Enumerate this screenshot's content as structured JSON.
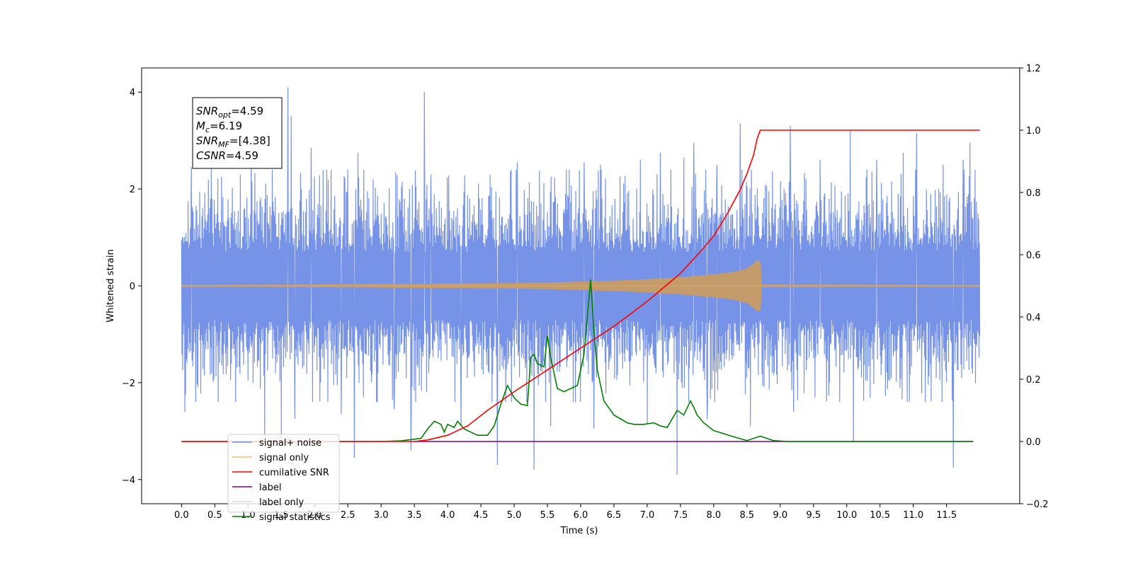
{
  "chart_data": {
    "type": "line",
    "xlabel": "Time (s)",
    "ylabel_left": "Whitened strain",
    "ylabel_right": "",
    "xlim": [
      -0.6,
      12.6
    ],
    "ylim_left": [
      -4.5,
      4.5
    ],
    "ylim_right": [
      -0.2,
      1.2
    ],
    "x_ticks": [
      0.0,
      0.5,
      1.0,
      1.5,
      2.0,
      2.5,
      3.0,
      3.5,
      4.0,
      4.5,
      5.0,
      5.5,
      6.0,
      6.5,
      7.0,
      7.5,
      8.0,
      8.5,
      9.0,
      9.5,
      10.0,
      10.5,
      11.0,
      11.5
    ],
    "x_tick_labels": [
      "0.0",
      "0.5",
      "1.0",
      "1.5",
      "2.0",
      "2.5",
      "3.0",
      "3.5",
      "4.0",
      "4.5",
      "5.0",
      "5.5",
      "6.0",
      "6.5",
      "7.0",
      "7.5",
      "8.0",
      "8.5",
      "9.0",
      "9.5",
      "10.0",
      "10.5",
      "11.0",
      "11.5"
    ],
    "y_left_ticks": [
      -4,
      -2,
      0,
      2,
      4
    ],
    "y_left_tick_labels": [
      "−4",
      "−2",
      "0",
      "2",
      "4"
    ],
    "y_right_ticks": [
      -0.2,
      0.0,
      0.2,
      0.4,
      0.6,
      0.8,
      1.0,
      1.2
    ],
    "y_right_tick_labels": [
      "−0.2",
      "0.0",
      "0.2",
      "0.4",
      "0.6",
      "0.8",
      "1.0",
      "1.2"
    ],
    "grid": false,
    "legend_position": "lower-left",
    "annotation": {
      "lines": [
        {
          "symbol": "SNR",
          "sub": "opt",
          "value": "=4.59"
        },
        {
          "symbol": "M",
          "sub": "c",
          "value": "=6.19"
        },
        {
          "symbol": "SNR",
          "sub": "MF",
          "value": "=[4.38]"
        },
        {
          "symbol": "CSNR",
          "sub": "",
          "value": "=4.59"
        }
      ]
    },
    "series": [
      {
        "name": "signal+ noise",
        "color": "#7793e8",
        "axis": "left",
        "x_range": [
          0.0,
          12.0
        ],
        "typical_amplitude": 1.9,
        "spikes": [
          [
            0.05,
            -2.6
          ],
          [
            0.15,
            2.45
          ],
          [
            0.45,
            2.65
          ],
          [
            0.55,
            -2.4
          ],
          [
            1.05,
            2.9
          ],
          [
            1.25,
            -3.1
          ],
          [
            1.5,
            -3.15
          ],
          [
            1.6,
            4.1
          ],
          [
            1.65,
            3.5
          ],
          [
            1.7,
            -2.75
          ],
          [
            1.95,
            2.85
          ],
          [
            2.4,
            -2.65
          ],
          [
            2.6,
            -3.55
          ],
          [
            2.65,
            2.75
          ],
          [
            3.2,
            -2.55
          ],
          [
            3.45,
            -3.4
          ],
          [
            3.65,
            4.0
          ],
          [
            3.75,
            2.3
          ],
          [
            4.2,
            -2.9
          ],
          [
            4.75,
            -3.7
          ],
          [
            5.05,
            2.55
          ],
          [
            5.3,
            -3.8
          ],
          [
            5.55,
            -2.9
          ],
          [
            6.05,
            2.55
          ],
          [
            6.2,
            -2.95
          ],
          [
            6.3,
            2.5
          ],
          [
            6.9,
            2.6
          ],
          [
            7.0,
            -2.85
          ],
          [
            7.2,
            2.75
          ],
          [
            7.45,
            -3.9
          ],
          [
            7.55,
            2.65
          ],
          [
            7.7,
            2.95
          ],
          [
            7.9,
            -2.75
          ],
          [
            8.05,
            2.5
          ],
          [
            8.4,
            3.35
          ],
          [
            8.55,
            -2.9
          ],
          [
            9.15,
            3.3
          ],
          [
            9.2,
            -2.6
          ],
          [
            9.6,
            2.6
          ],
          [
            10.05,
            3.2
          ],
          [
            10.1,
            -3.2
          ],
          [
            10.45,
            2.6
          ],
          [
            10.85,
            2.75
          ],
          [
            11.05,
            3.15
          ],
          [
            11.45,
            2.5
          ],
          [
            11.6,
            -3.75
          ],
          [
            11.75,
            2.6
          ],
          [
            11.85,
            2.95
          ]
        ]
      },
      {
        "name": "signal only",
        "color": "#f5c26b",
        "axis": "left",
        "envelope": [
          [
            0.0,
            0.01
          ],
          [
            1.0,
            0.015
          ],
          [
            2.0,
            0.02
          ],
          [
            3.0,
            0.03
          ],
          [
            4.0,
            0.04
          ],
          [
            5.0,
            0.05
          ],
          [
            5.5,
            0.06
          ],
          [
            6.0,
            0.08
          ],
          [
            6.5,
            0.1
          ],
          [
            7.0,
            0.13
          ],
          [
            7.5,
            0.17
          ],
          [
            8.0,
            0.23
          ],
          [
            8.3,
            0.28
          ],
          [
            8.5,
            0.35
          ],
          [
            8.6,
            0.45
          ],
          [
            8.65,
            0.52
          ],
          [
            8.7,
            0.5
          ],
          [
            8.72,
            0.02
          ],
          [
            12.0,
            0.01
          ]
        ]
      },
      {
        "name": "cumilative SNR",
        "color": "#ff0000",
        "axis": "right",
        "x": [
          0.0,
          3.5,
          3.7,
          4.0,
          4.3,
          4.6,
          5.0,
          5.5,
          6.0,
          6.5,
          7.0,
          7.5,
          7.8,
          8.0,
          8.2,
          8.4,
          8.5,
          8.6,
          8.65,
          8.7,
          8.75,
          12.0
        ],
        "values": [
          0.0,
          0.0,
          0.005,
          0.02,
          0.05,
          0.1,
          0.16,
          0.23,
          0.3,
          0.37,
          0.45,
          0.54,
          0.61,
          0.66,
          0.73,
          0.81,
          0.86,
          0.92,
          0.97,
          1.0,
          1.0,
          1.0
        ]
      },
      {
        "name": "label",
        "color": "#800080",
        "axis": "right",
        "x": [
          3.5,
          11.9
        ],
        "values": [
          0.0,
          0.0
        ]
      },
      {
        "name": "label only",
        "color": "#d8d8d8",
        "axis": "right",
        "hidden_in_plot": true
      },
      {
        "name": "signal statistics",
        "color": "#008000",
        "axis": "right",
        "x": [
          0.0,
          2.0,
          3.0,
          3.3,
          3.6,
          3.7,
          3.8,
          3.9,
          3.95,
          4.0,
          4.1,
          4.15,
          4.25,
          4.35,
          4.45,
          4.6,
          4.7,
          4.8,
          4.9,
          5.0,
          5.1,
          5.2,
          5.25,
          5.3,
          5.35,
          5.45,
          5.5,
          5.55,
          5.65,
          5.75,
          5.85,
          5.95,
          6.05,
          6.15,
          6.2,
          6.25,
          6.35,
          6.5,
          6.7,
          6.8,
          6.95,
          7.1,
          7.2,
          7.3,
          7.45,
          7.55,
          7.65,
          7.7,
          7.75,
          7.85,
          8.0,
          8.15,
          8.3,
          8.5,
          8.7,
          8.9,
          9.1,
          9.5,
          10.0,
          11.0,
          11.9
        ],
        "values": [
          0.0,
          0.0,
          0.0,
          0.002,
          0.01,
          0.04,
          0.065,
          0.055,
          0.03,
          0.055,
          0.045,
          0.065,
          0.04,
          0.03,
          0.02,
          0.02,
          0.05,
          0.12,
          0.18,
          0.14,
          0.12,
          0.115,
          0.27,
          0.28,
          0.25,
          0.24,
          0.34,
          0.27,
          0.17,
          0.16,
          0.17,
          0.18,
          0.28,
          0.52,
          0.35,
          0.23,
          0.13,
          0.085,
          0.06,
          0.055,
          0.055,
          0.06,
          0.05,
          0.045,
          0.1,
          0.085,
          0.13,
          0.11,
          0.085,
          0.06,
          0.035,
          0.025,
          0.015,
          0.003,
          0.017,
          0.003,
          0.0,
          0.0,
          0.0,
          0.0,
          0.0
        ]
      }
    ]
  }
}
